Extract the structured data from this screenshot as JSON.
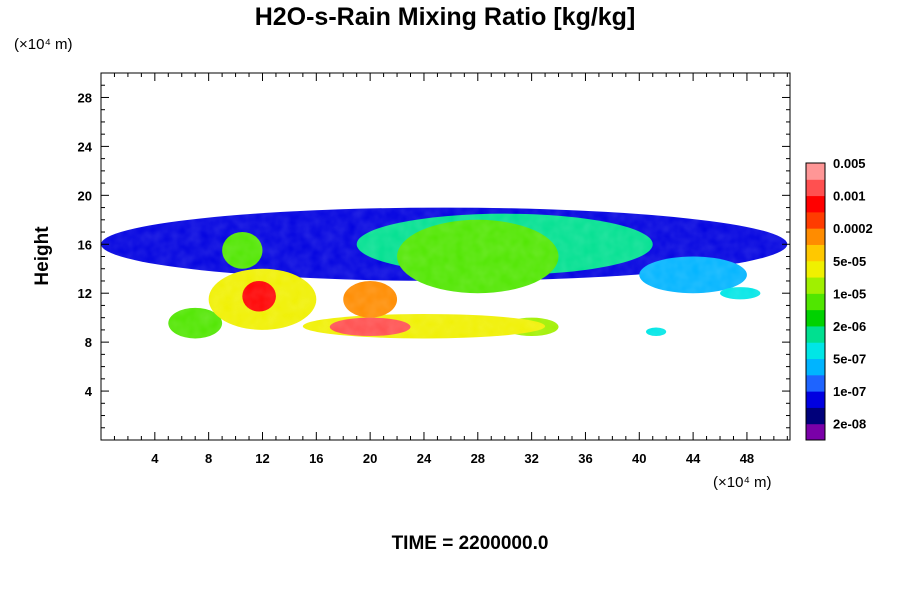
{
  "chart_data": {
    "type": "heatmap",
    "title": "H2O-s-Rain Mixing Ratio [kg/kg]",
    "xunit": "(×10⁴ m)",
    "yunit": "(×10⁴ m)",
    "ylabel": "Height",
    "footer": "TIME = 2200000.0",
    "xlim": [
      0,
      51.2
    ],
    "ylim": [
      0,
      30
    ],
    "xticks": [
      4,
      8,
      12,
      16,
      20,
      24,
      28,
      32,
      36,
      40,
      44,
      48
    ],
    "yticks": [
      4,
      8,
      12,
      16,
      20,
      24,
      28
    ],
    "colorbar": {
      "colors": [
        "#7a00a8",
        "#00007a",
        "#0000e0",
        "#1e64ff",
        "#00b4ff",
        "#00e6e6",
        "#00e090",
        "#00d200",
        "#50e600",
        "#a0f000",
        "#f0f000",
        "#ffc800",
        "#ff8c00",
        "#ff3c00",
        "#ff0000",
        "#ff5050",
        "#ff9696"
      ],
      "labels": [
        "2e-08",
        "1e-07",
        "5e-07",
        "2e-06",
        "1e-05",
        "5e-05",
        "0.0002",
        "0.001",
        "0.005"
      ]
    },
    "regions": [
      {
        "x": [
          5,
          9
        ],
        "y": [
          8.3,
          10.8
        ],
        "level": 8
      },
      {
        "x": [
          8,
          16
        ],
        "y": [
          9,
          14
        ],
        "level": 10
      },
      {
        "x": [
          10.5,
          13
        ],
        "y": [
          10.5,
          13
        ],
        "level": 14
      },
      {
        "x": [
          9,
          12
        ],
        "y": [
          14,
          17
        ],
        "level": 8
      },
      {
        "x": [
          15,
          33
        ],
        "y": [
          8.3,
          10.3
        ],
        "level": 10
      },
      {
        "x": [
          17,
          23
        ],
        "y": [
          8.5,
          10
        ],
        "level": 15
      },
      {
        "x": [
          18,
          22
        ],
        "y": [
          10,
          13
        ],
        "level": 12
      },
      {
        "x": [
          19,
          41
        ],
        "y": [
          13.5,
          18.5
        ],
        "level": 6
      },
      {
        "x": [
          22,
          34
        ],
        "y": [
          12,
          18
        ],
        "level": 8
      },
      {
        "x": [
          30,
          34
        ],
        "y": [
          8.5,
          10
        ],
        "level": 9
      },
      {
        "x": [
          40,
          48
        ],
        "y": [
          12,
          15
        ],
        "level": 4
      },
      {
        "x": [
          0,
          51
        ],
        "y": [
          13,
          19
        ],
        "level": 2
      },
      {
        "x": [
          46,
          49
        ],
        "y": [
          11.5,
          12.5
        ],
        "level": 5
      },
      {
        "x": [
          40.5,
          42
        ],
        "y": [
          8.5,
          9.2
        ],
        "level": 5
      }
    ]
  }
}
